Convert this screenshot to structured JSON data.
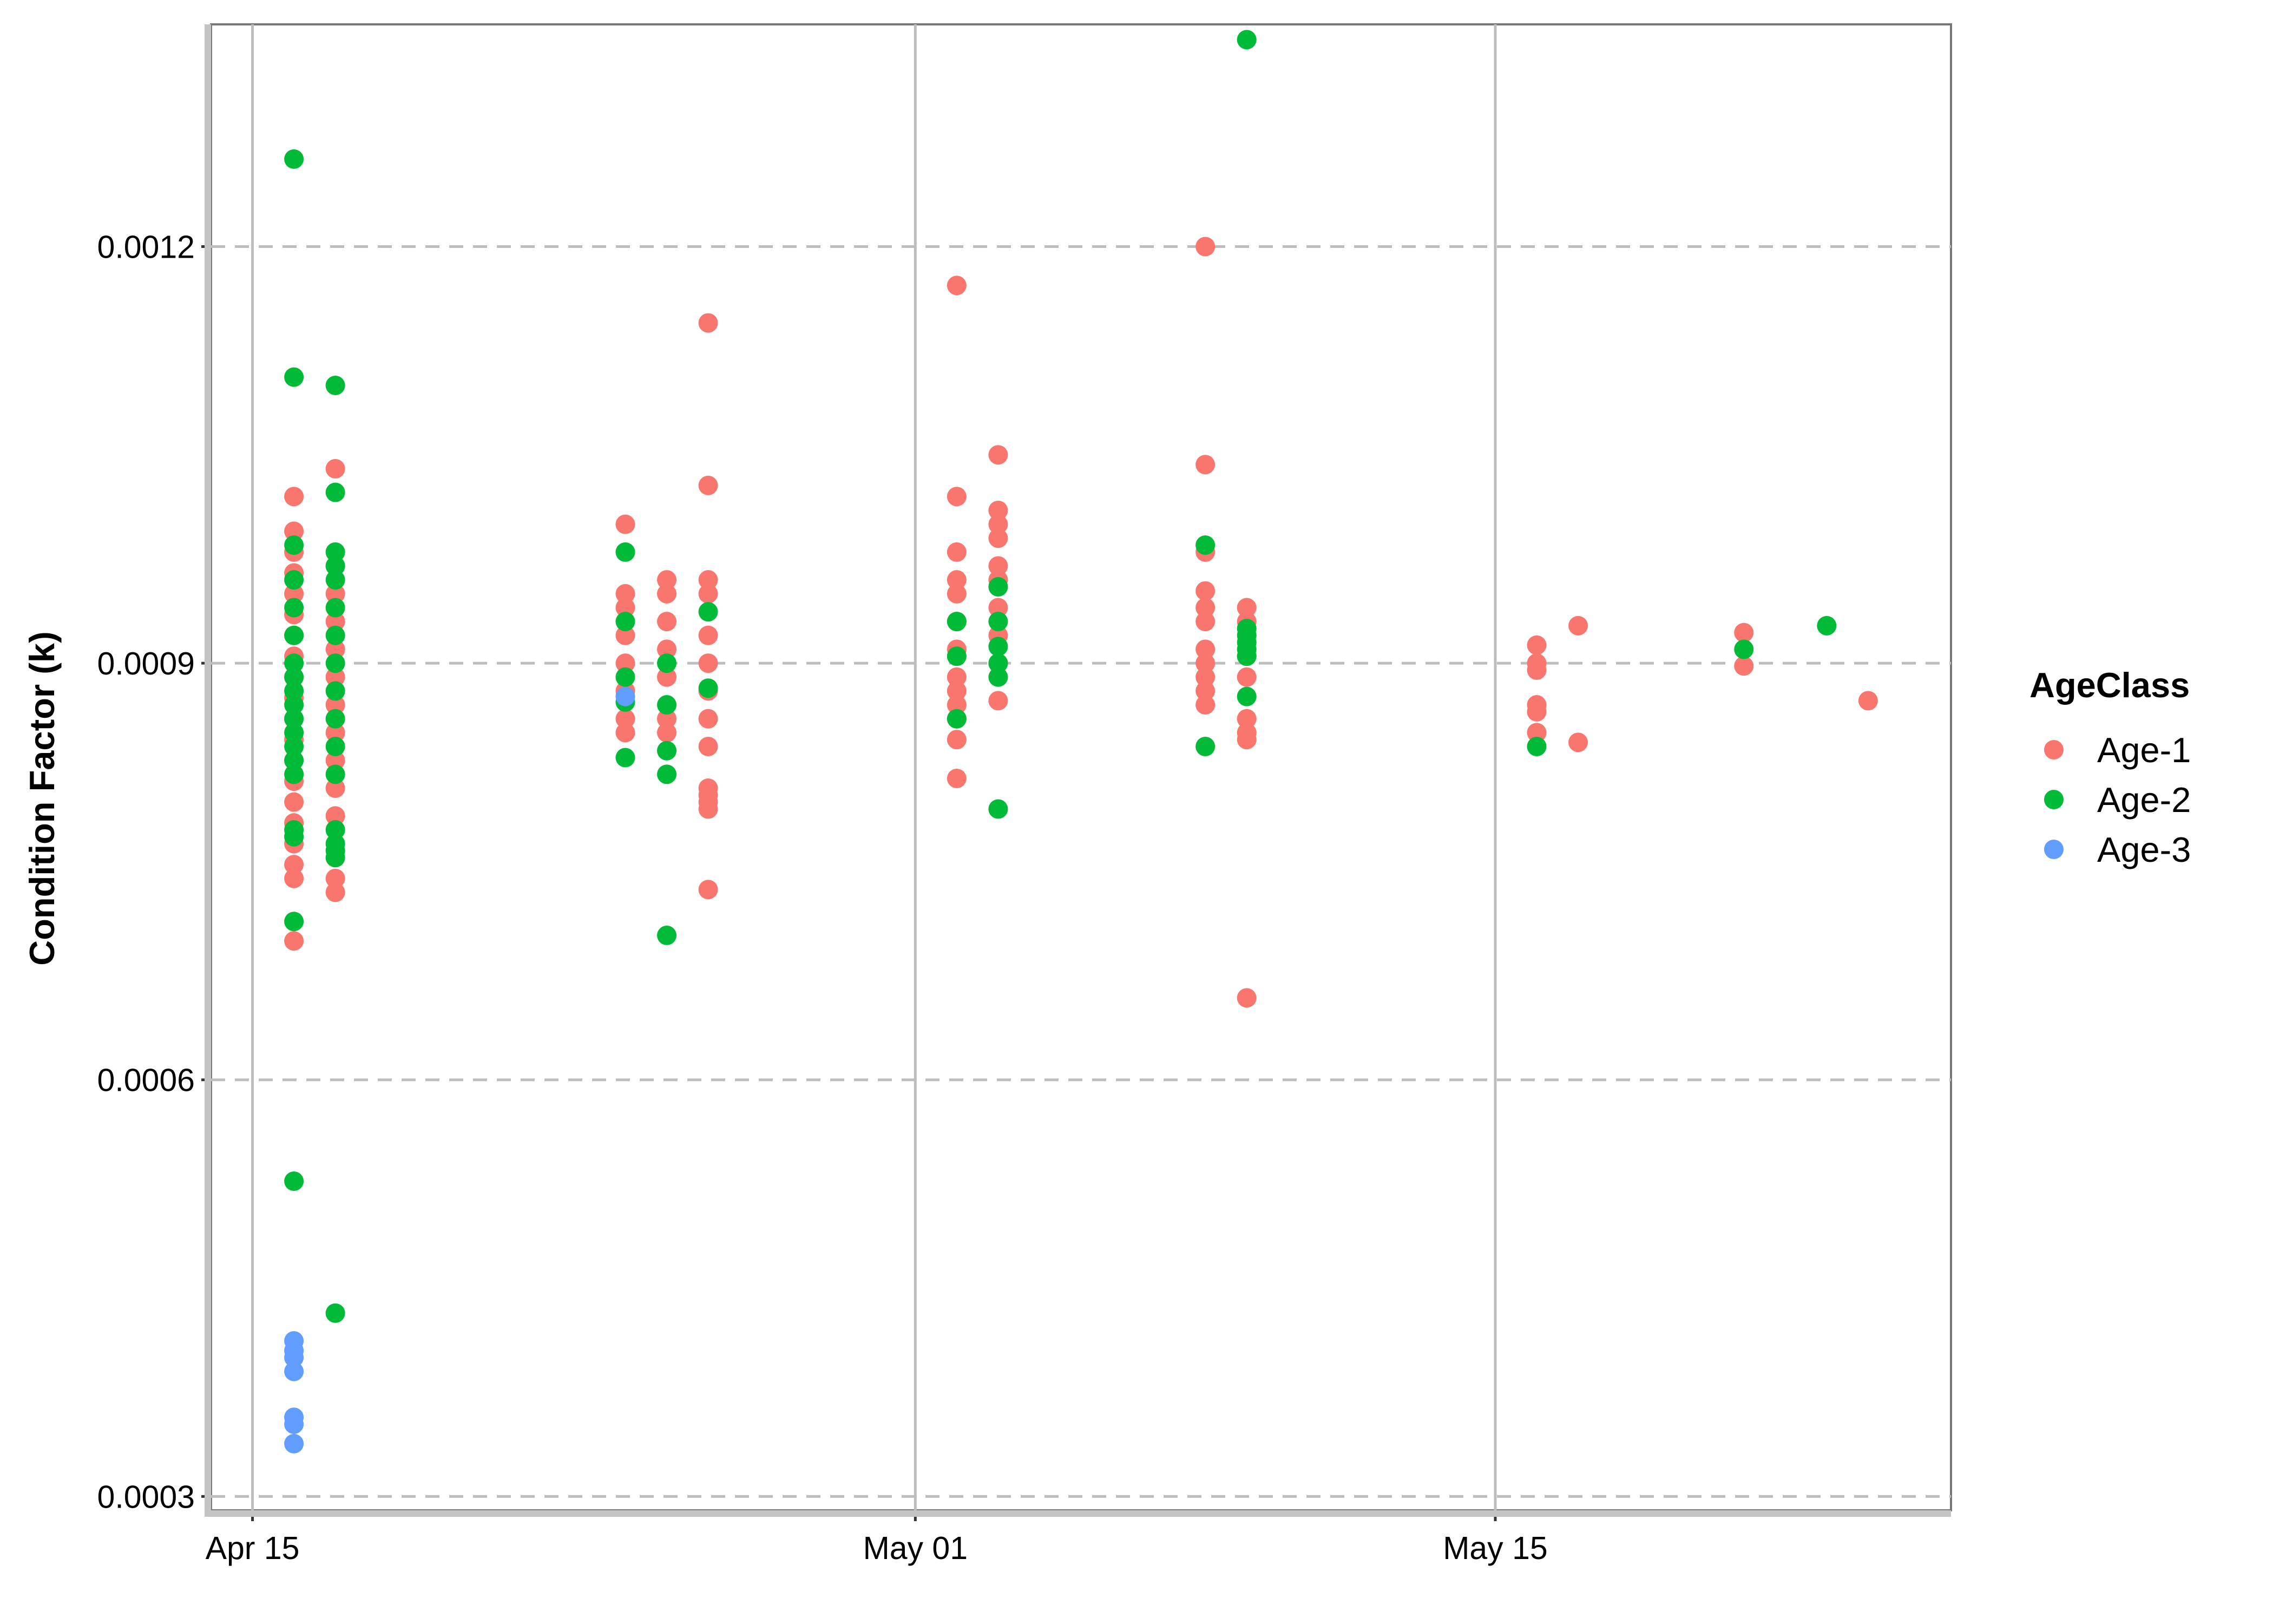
{
  "chart_data": {
    "type": "scatter",
    "title": "",
    "xlabel": "",
    "ylabel": "Condition Factor (k)",
    "x_axis": {
      "type": "date",
      "range": [
        "2023-04-14",
        "2023-05-26"
      ],
      "ticks": [
        {
          "value": "2023-04-15",
          "label": "Apr 15"
        },
        {
          "value": "2023-05-01",
          "label": "May 01"
        },
        {
          "value": "2023-05-15",
          "label": "May 15"
        }
      ]
    },
    "y_axis": {
      "range": [
        0.00029,
        0.00136
      ],
      "ticks": [
        {
          "value": 0.0003,
          "label": "0.0003"
        },
        {
          "value": 0.0006,
          "label": "0.0006"
        },
        {
          "value": 0.0009,
          "label": "0.0009"
        },
        {
          "value": 0.0012,
          "label": "0.0012"
        }
      ]
    },
    "grid": {
      "vertical_major": true,
      "horizontal_major": "dashed"
    },
    "legend": {
      "title": "AgeClass",
      "position": "right",
      "entries": [
        {
          "label": "Age-1",
          "color": "#F8766D"
        },
        {
          "label": "Age-2",
          "color": "#00BA38"
        },
        {
          "label": "Age-3",
          "color": "#619CFF"
        }
      ]
    },
    "series": [
      {
        "name": "Age-1",
        "color": "#F8766D",
        "points": [
          [
            "2023-04-16",
            0.00102
          ],
          [
            "2023-04-16",
            0.000995
          ],
          [
            "2023-04-16",
            0.00098
          ],
          [
            "2023-04-16",
            0.000965
          ],
          [
            "2023-04-16",
            0.00095
          ],
          [
            "2023-04-16",
            0.000935
          ],
          [
            "2023-04-16",
            0.00092
          ],
          [
            "2023-04-16",
            0.000905
          ],
          [
            "2023-04-16",
            0.00089
          ],
          [
            "2023-04-16",
            0.000875
          ],
          [
            "2023-04-16",
            0.00086
          ],
          [
            "2023-04-16",
            0.000845
          ],
          [
            "2023-04-16",
            0.00083
          ],
          [
            "2023-04-16",
            0.000815
          ],
          [
            "2023-04-16",
            0.0008
          ],
          [
            "2023-04-16",
            0.000785
          ],
          [
            "2023-04-16",
            0.00077
          ],
          [
            "2023-04-16",
            0.000755
          ],
          [
            "2023-04-16",
            0.000745
          ],
          [
            "2023-04-16",
            0.0007
          ],
          [
            "2023-04-17",
            0.00104
          ],
          [
            "2023-04-17",
            0.00097
          ],
          [
            "2023-04-17",
            0.00095
          ],
          [
            "2023-04-17",
            0.00093
          ],
          [
            "2023-04-17",
            0.00091
          ],
          [
            "2023-04-17",
            0.00089
          ],
          [
            "2023-04-17",
            0.00087
          ],
          [
            "2023-04-17",
            0.00085
          ],
          [
            "2023-04-17",
            0.00083
          ],
          [
            "2023-04-17",
            0.00081
          ],
          [
            "2023-04-17",
            0.00079
          ],
          [
            "2023-04-17",
            0.000745
          ],
          [
            "2023-04-17",
            0.000735
          ],
          [
            "2023-04-24",
            0.001
          ],
          [
            "2023-04-24",
            0.00095
          ],
          [
            "2023-04-24",
            0.00094
          ],
          [
            "2023-04-24",
            0.00092
          ],
          [
            "2023-04-24",
            0.0009
          ],
          [
            "2023-04-24",
            0.00088
          ],
          [
            "2023-04-24",
            0.00086
          ],
          [
            "2023-04-24",
            0.00085
          ],
          [
            "2023-04-25",
            0.00096
          ],
          [
            "2023-04-25",
            0.00095
          ],
          [
            "2023-04-25",
            0.00093
          ],
          [
            "2023-04-25",
            0.00091
          ],
          [
            "2023-04-25",
            0.00089
          ],
          [
            "2023-04-25",
            0.00086
          ],
          [
            "2023-04-25",
            0.00085
          ],
          [
            "2023-04-26",
            0.001145
          ],
          [
            "2023-04-26",
            0.001028
          ],
          [
            "2023-04-26",
            0.00096
          ],
          [
            "2023-04-26",
            0.00095
          ],
          [
            "2023-04-26",
            0.00092
          ],
          [
            "2023-04-26",
            0.0009
          ],
          [
            "2023-04-26",
            0.00088
          ],
          [
            "2023-04-26",
            0.00086
          ],
          [
            "2023-04-26",
            0.00084
          ],
          [
            "2023-04-26",
            0.00081
          ],
          [
            "2023-04-26",
            0.000805
          ],
          [
            "2023-04-26",
            0.0008
          ],
          [
            "2023-04-26",
            0.000795
          ],
          [
            "2023-04-26",
            0.000737
          ],
          [
            "2023-05-02",
            0.001172
          ],
          [
            "2023-05-02",
            0.00102
          ],
          [
            "2023-05-02",
            0.00098
          ],
          [
            "2023-05-02",
            0.00096
          ],
          [
            "2023-05-02",
            0.00095
          ],
          [
            "2023-05-02",
            0.00093
          ],
          [
            "2023-05-02",
            0.00091
          ],
          [
            "2023-05-02",
            0.00089
          ],
          [
            "2023-05-02",
            0.00088
          ],
          [
            "2023-05-02",
            0.00087
          ],
          [
            "2023-05-02",
            0.00086
          ],
          [
            "2023-05-02",
            0.000845
          ],
          [
            "2023-05-02",
            0.000817
          ],
          [
            "2023-05-03",
            0.00105
          ],
          [
            "2023-05-03",
            0.00101
          ],
          [
            "2023-05-03",
            0.001
          ],
          [
            "2023-05-03",
            0.00099
          ],
          [
            "2023-05-03",
            0.00097
          ],
          [
            "2023-05-03",
            0.00096
          ],
          [
            "2023-05-03",
            0.00094
          ],
          [
            "2023-05-03",
            0.00092
          ],
          [
            "2023-05-03",
            0.0009
          ],
          [
            "2023-05-03",
            0.000873
          ],
          [
            "2023-05-08",
            0.0012
          ],
          [
            "2023-05-08",
            0.001043
          ],
          [
            "2023-05-08",
            0.00098
          ],
          [
            "2023-05-08",
            0.000952
          ],
          [
            "2023-05-08",
            0.00094
          ],
          [
            "2023-05-08",
            0.00093
          ],
          [
            "2023-05-08",
            0.00091
          ],
          [
            "2023-05-08",
            0.0009
          ],
          [
            "2023-05-08",
            0.00089
          ],
          [
            "2023-05-08",
            0.00088
          ],
          [
            "2023-05-08",
            0.00087
          ],
          [
            "2023-05-09",
            0.00094
          ],
          [
            "2023-05-09",
            0.00093
          ],
          [
            "2023-05-09",
            0.000905
          ],
          [
            "2023-05-09",
            0.00089
          ],
          [
            "2023-05-09",
            0.00086
          ],
          [
            "2023-05-09",
            0.00085
          ],
          [
            "2023-05-09",
            0.000845
          ],
          [
            "2023-05-09",
            0.000659
          ],
          [
            "2023-05-16",
            0.000913
          ],
          [
            "2023-05-16",
            0.0009
          ],
          [
            "2023-05-16",
            0.000895
          ],
          [
            "2023-05-16",
            0.00087
          ],
          [
            "2023-05-16",
            0.000865
          ],
          [
            "2023-05-16",
            0.00085
          ],
          [
            "2023-05-17",
            0.000927
          ],
          [
            "2023-05-17",
            0.000843
          ],
          [
            "2023-05-21",
            0.000922
          ],
          [
            "2023-05-21",
            0.000898
          ],
          [
            "2023-05-24",
            0.000873
          ]
        ]
      },
      {
        "name": "Age-2",
        "color": "#00BA38",
        "points": [
          [
            "2023-04-16",
            0.001263
          ],
          [
            "2023-04-16",
            0.001106
          ],
          [
            "2023-04-16",
            0.000985
          ],
          [
            "2023-04-16",
            0.00096
          ],
          [
            "2023-04-16",
            0.00094
          ],
          [
            "2023-04-16",
            0.00092
          ],
          [
            "2023-04-16",
            0.0009
          ],
          [
            "2023-04-16",
            0.00089
          ],
          [
            "2023-04-16",
            0.00088
          ],
          [
            "2023-04-16",
            0.00087
          ],
          [
            "2023-04-16",
            0.00086
          ],
          [
            "2023-04-16",
            0.00085
          ],
          [
            "2023-04-16",
            0.00084
          ],
          [
            "2023-04-16",
            0.00083
          ],
          [
            "2023-04-16",
            0.00082
          ],
          [
            "2023-04-16",
            0.00078
          ],
          [
            "2023-04-16",
            0.000775
          ],
          [
            "2023-04-16",
            0.000714
          ],
          [
            "2023-04-16",
            0.000527
          ],
          [
            "2023-04-17",
            0.0011
          ],
          [
            "2023-04-17",
            0.001023
          ],
          [
            "2023-04-17",
            0.00098
          ],
          [
            "2023-04-17",
            0.00097
          ],
          [
            "2023-04-17",
            0.00096
          ],
          [
            "2023-04-17",
            0.00094
          ],
          [
            "2023-04-17",
            0.00092
          ],
          [
            "2023-04-17",
            0.0009
          ],
          [
            "2023-04-17",
            0.00088
          ],
          [
            "2023-04-17",
            0.00086
          ],
          [
            "2023-04-17",
            0.00084
          ],
          [
            "2023-04-17",
            0.00082
          ],
          [
            "2023-04-17",
            0.00078
          ],
          [
            "2023-04-17",
            0.00077
          ],
          [
            "2023-04-17",
            0.000765
          ],
          [
            "2023-04-17",
            0.00076
          ],
          [
            "2023-04-17",
            0.000432
          ],
          [
            "2023-04-24",
            0.00098
          ],
          [
            "2023-04-24",
            0.00093
          ],
          [
            "2023-04-24",
            0.00089
          ],
          [
            "2023-04-24",
            0.000872
          ],
          [
            "2023-04-24",
            0.000832
          ],
          [
            "2023-04-25",
            0.0009
          ],
          [
            "2023-04-25",
            0.00087
          ],
          [
            "2023-04-25",
            0.000837
          ],
          [
            "2023-04-25",
            0.00082
          ],
          [
            "2023-04-25",
            0.000704
          ],
          [
            "2023-04-26",
            0.000937
          ],
          [
            "2023-04-26",
            0.000882
          ],
          [
            "2023-05-02",
            0.00093
          ],
          [
            "2023-05-02",
            0.000905
          ],
          [
            "2023-05-02",
            0.00086
          ],
          [
            "2023-05-03",
            0.000955
          ],
          [
            "2023-05-03",
            0.00093
          ],
          [
            "2023-05-03",
            0.000912
          ],
          [
            "2023-05-03",
            0.0009
          ],
          [
            "2023-05-03",
            0.00089
          ],
          [
            "2023-05-03",
            0.000795
          ],
          [
            "2023-05-08",
            0.000985
          ],
          [
            "2023-05-08",
            0.00084
          ],
          [
            "2023-05-09",
            0.001349
          ],
          [
            "2023-05-09",
            0.000925
          ],
          [
            "2023-05-09",
            0.00092
          ],
          [
            "2023-05-09",
            0.000915
          ],
          [
            "2023-05-09",
            0.00091
          ],
          [
            "2023-05-09",
            0.000905
          ],
          [
            "2023-05-09",
            0.000876
          ],
          [
            "2023-05-16",
            0.00084
          ],
          [
            "2023-05-21",
            0.00091
          ],
          [
            "2023-05-23",
            0.000927
          ]
        ]
      },
      {
        "name": "Age-3",
        "color": "#619CFF",
        "points": [
          [
            "2023-04-16",
            0.000412
          ],
          [
            "2023-04-16",
            0.000405
          ],
          [
            "2023-04-16",
            0.0004
          ],
          [
            "2023-04-16",
            0.00039
          ],
          [
            "2023-04-16",
            0.000357
          ],
          [
            "2023-04-16",
            0.000352
          ],
          [
            "2023-04-16",
            0.000338
          ],
          [
            "2023-04-24",
            0.000876
          ]
        ]
      }
    ]
  }
}
